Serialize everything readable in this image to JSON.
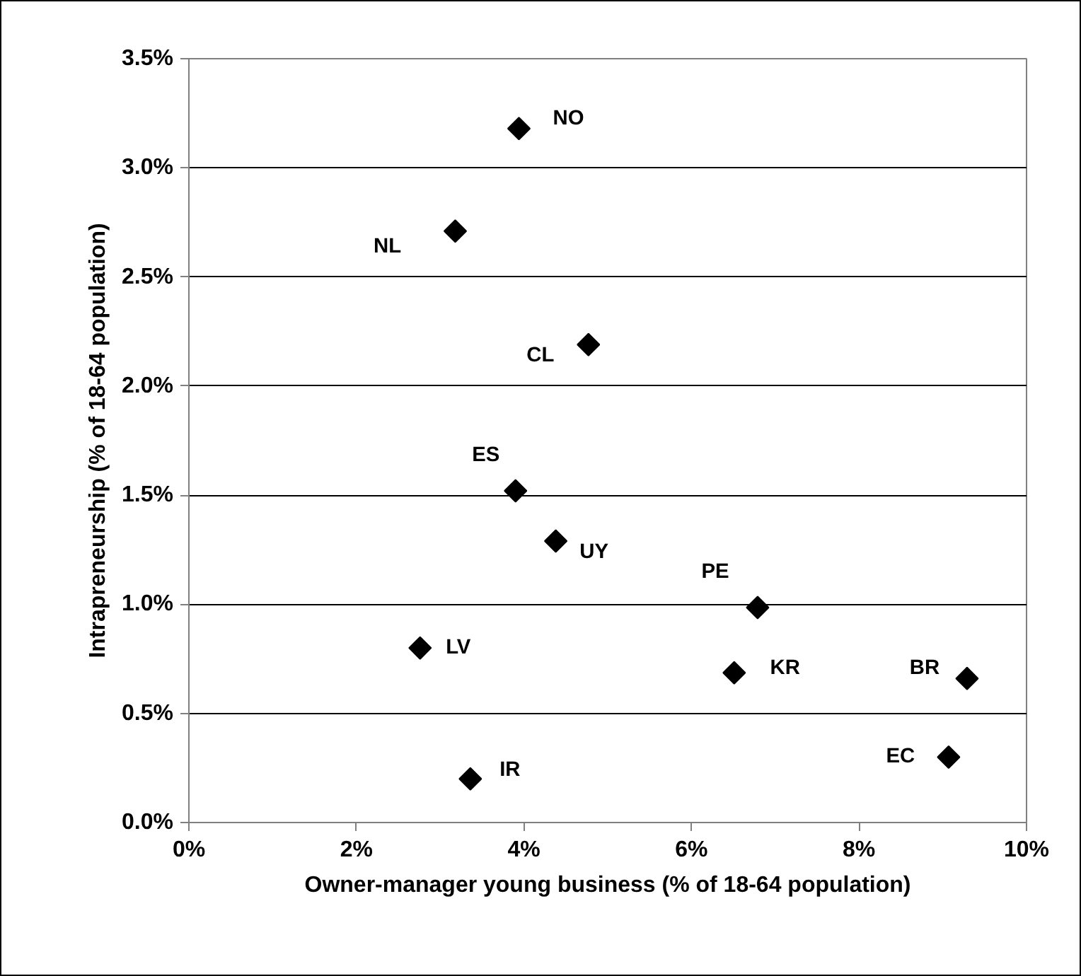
{
  "chart_data": {
    "type": "scatter",
    "xlabel": "Owner-manager young business (% of 18-64 population)",
    "ylabel": "Intrapreneurship (% of 18-64 population)",
    "x": [
      3.94,
      3.18,
      4.77,
      3.9,
      4.38,
      2.76,
      3.36,
      6.79,
      6.51,
      9.29,
      9.07
    ],
    "series": [
      {
        "color": "#000000",
        "values": [
          3.18,
          2.71,
          2.19,
          1.52,
          1.29,
          0.8,
          0.2,
          0.985,
          0.686,
          0.66,
          0.3
        ]
      }
    ],
    "xlim": [
      0,
      10
    ],
    "ylim": [
      0,
      3.5
    ],
    "xticks": [
      {
        "value": 0,
        "label": "0%"
      },
      {
        "value": 2,
        "label": "2%"
      },
      {
        "value": 4,
        "label": "4%"
      },
      {
        "value": 6,
        "label": "6%"
      },
      {
        "value": 8,
        "label": "8%"
      },
      {
        "value": 10,
        "label": "10%"
      }
    ],
    "yticks": [
      {
        "value": 0,
        "label": "0.0%"
      },
      {
        "value": 0.5,
        "label": "0.5%"
      },
      {
        "value": 1,
        "label": "1.0%"
      },
      {
        "value": 1.5,
        "label": "1.5%"
      },
      {
        "value": 2,
        "label": "2.0%"
      },
      {
        "value": 2.5,
        "label": "2.5%"
      },
      {
        "value": 3,
        "label": "3.0%"
      },
      {
        "value": 3.5,
        "label": "3.5%"
      }
    ],
    "grid": "y",
    "marker": "diamond",
    "annotations": [
      {
        "text": "NO",
        "x": 3.94,
        "y": 3.18
      },
      {
        "text": "NL",
        "x": 3.18,
        "y": 2.71
      },
      {
        "text": "CL",
        "x": 4.77,
        "y": 2.19
      },
      {
        "text": "ES",
        "x": 3.9,
        "y": 1.52
      },
      {
        "text": "UY",
        "x": 4.38,
        "y": 1.29
      },
      {
        "text": "LV",
        "x": 2.76,
        "y": 0.8
      },
      {
        "text": "IR",
        "x": 3.36,
        "y": 0.2
      },
      {
        "text": "PE",
        "x": 6.79,
        "y": 0.985
      },
      {
        "text": "KR",
        "x": 6.51,
        "y": 0.686
      },
      {
        "text": "BR",
        "x": 9.29,
        "y": 0.66
      },
      {
        "text": "EC",
        "x": 9.07,
        "y": 0.3
      }
    ]
  }
}
